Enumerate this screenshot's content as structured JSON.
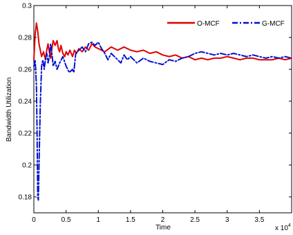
{
  "chart_data": {
    "type": "line",
    "title": "",
    "xlabel": "Time",
    "ylabel": "Bandwidth Utilization",
    "x_multiplier_label": "x 10",
    "x_multiplier_exponent": "4",
    "xlim": [
      0,
      4
    ],
    "ylim": [
      0.17,
      0.3
    ],
    "x_ticks": [
      {
        "value": 0,
        "label": "0"
      },
      {
        "value": 0.5,
        "label": "0.5"
      },
      {
        "value": 1,
        "label": "1"
      },
      {
        "value": 1.5,
        "label": "1.5"
      },
      {
        "value": 2,
        "label": "2"
      },
      {
        "value": 2.5,
        "label": "2.5"
      },
      {
        "value": 3,
        "label": "3"
      },
      {
        "value": 3.5,
        "label": "3.5"
      }
    ],
    "y_ticks": [
      {
        "value": 0.18,
        "label": "0.18"
      },
      {
        "value": 0.2,
        "label": "0.2"
      },
      {
        "value": 0.22,
        "label": "0.22"
      },
      {
        "value": 0.24,
        "label": "0.24"
      },
      {
        "value": 0.26,
        "label": "0.26"
      },
      {
        "value": 0.28,
        "label": "0.28"
      },
      {
        "value": 0.3,
        "label": "0.3"
      }
    ],
    "grid": false,
    "legend_placement": "top-right",
    "series": [
      {
        "name": "O-MCF",
        "color": "#e00000",
        "dash": "solid",
        "points": [
          [
            0.0,
            0.266
          ],
          [
            0.02,
            0.282
          ],
          [
            0.04,
            0.289
          ],
          [
            0.06,
            0.284
          ],
          [
            0.08,
            0.276
          ],
          [
            0.1,
            0.272
          ],
          [
            0.12,
            0.268
          ],
          [
            0.15,
            0.271
          ],
          [
            0.18,
            0.266
          ],
          [
            0.2,
            0.272
          ],
          [
            0.22,
            0.276
          ],
          [
            0.24,
            0.271
          ],
          [
            0.26,
            0.267
          ],
          [
            0.28,
            0.273
          ],
          [
            0.3,
            0.278
          ],
          [
            0.33,
            0.275
          ],
          [
            0.36,
            0.278
          ],
          [
            0.38,
            0.273
          ],
          [
            0.4,
            0.271
          ],
          [
            0.42,
            0.275
          ],
          [
            0.45,
            0.27
          ],
          [
            0.48,
            0.268
          ],
          [
            0.5,
            0.271
          ],
          [
            0.53,
            0.269
          ],
          [
            0.56,
            0.272
          ],
          [
            0.6,
            0.268
          ],
          [
            0.63,
            0.272
          ],
          [
            0.66,
            0.27
          ],
          [
            0.7,
            0.273
          ],
          [
            0.75,
            0.271
          ],
          [
            0.8,
            0.274
          ],
          [
            0.85,
            0.272
          ],
          [
            0.9,
            0.276
          ],
          [
            0.95,
            0.274
          ],
          [
            1.0,
            0.273
          ],
          [
            1.1,
            0.271
          ],
          [
            1.2,
            0.274
          ],
          [
            1.3,
            0.272
          ],
          [
            1.4,
            0.274
          ],
          [
            1.5,
            0.272
          ],
          [
            1.6,
            0.271
          ],
          [
            1.7,
            0.272
          ],
          [
            1.8,
            0.27
          ],
          [
            1.9,
            0.271
          ],
          [
            2.0,
            0.269
          ],
          [
            2.1,
            0.268
          ],
          [
            2.2,
            0.269
          ],
          [
            2.3,
            0.267
          ],
          [
            2.4,
            0.268
          ],
          [
            2.5,
            0.266
          ],
          [
            2.6,
            0.267
          ],
          [
            2.7,
            0.266
          ],
          [
            2.8,
            0.267
          ],
          [
            2.9,
            0.267
          ],
          [
            3.0,
            0.268
          ],
          [
            3.1,
            0.267
          ],
          [
            3.2,
            0.266
          ],
          [
            3.3,
            0.267
          ],
          [
            3.4,
            0.267
          ],
          [
            3.5,
            0.266
          ],
          [
            3.6,
            0.266
          ],
          [
            3.7,
            0.266
          ],
          [
            3.8,
            0.267
          ],
          [
            3.9,
            0.266
          ],
          [
            4.0,
            0.267
          ]
        ]
      },
      {
        "name": "G-MCF",
        "color": "#0010d0",
        "dash": "dashdot",
        "points": [
          [
            0.0,
            0.262
          ],
          [
            0.02,
            0.266
          ],
          [
            0.04,
            0.25
          ],
          [
            0.05,
            0.22
          ],
          [
            0.06,
            0.18
          ],
          [
            0.07,
            0.178
          ],
          [
            0.08,
            0.2
          ],
          [
            0.1,
            0.238
          ],
          [
            0.12,
            0.262
          ],
          [
            0.14,
            0.266
          ],
          [
            0.16,
            0.26
          ],
          [
            0.18,
            0.266
          ],
          [
            0.2,
            0.27
          ],
          [
            0.22,
            0.264
          ],
          [
            0.24,
            0.268
          ],
          [
            0.26,
            0.276
          ],
          [
            0.28,
            0.27
          ],
          [
            0.3,
            0.262
          ],
          [
            0.33,
            0.265
          ],
          [
            0.36,
            0.26
          ],
          [
            0.4,
            0.264
          ],
          [
            0.45,
            0.268
          ],
          [
            0.5,
            0.262
          ],
          [
            0.55,
            0.258
          ],
          [
            0.6,
            0.26
          ],
          [
            0.62,
            0.258
          ],
          [
            0.65,
            0.27
          ],
          [
            0.7,
            0.272
          ],
          [
            0.75,
            0.274
          ],
          [
            0.8,
            0.271
          ],
          [
            0.85,
            0.276
          ],
          [
            0.9,
            0.277
          ],
          [
            0.95,
            0.275
          ],
          [
            1.0,
            0.277
          ],
          [
            1.05,
            0.273
          ],
          [
            1.1,
            0.27
          ],
          [
            1.15,
            0.266
          ],
          [
            1.2,
            0.27
          ],
          [
            1.25,
            0.268
          ],
          [
            1.3,
            0.266
          ],
          [
            1.35,
            0.264
          ],
          [
            1.4,
            0.269
          ],
          [
            1.45,
            0.266
          ],
          [
            1.5,
            0.268
          ],
          [
            1.6,
            0.264
          ],
          [
            1.7,
            0.267
          ],
          [
            1.8,
            0.265
          ],
          [
            1.9,
            0.264
          ],
          [
            2.0,
            0.263
          ],
          [
            2.1,
            0.266
          ],
          [
            2.2,
            0.265
          ],
          [
            2.3,
            0.267
          ],
          [
            2.4,
            0.268
          ],
          [
            2.5,
            0.27
          ],
          [
            2.6,
            0.271
          ],
          [
            2.7,
            0.27
          ],
          [
            2.8,
            0.269
          ],
          [
            2.9,
            0.27
          ],
          [
            3.0,
            0.269
          ],
          [
            3.1,
            0.27
          ],
          [
            3.2,
            0.269
          ],
          [
            3.3,
            0.268
          ],
          [
            3.4,
            0.269
          ],
          [
            3.5,
            0.268
          ],
          [
            3.6,
            0.267
          ],
          [
            3.7,
            0.268
          ],
          [
            3.8,
            0.267
          ],
          [
            3.9,
            0.268
          ],
          [
            4.0,
            0.267
          ]
        ]
      }
    ]
  }
}
